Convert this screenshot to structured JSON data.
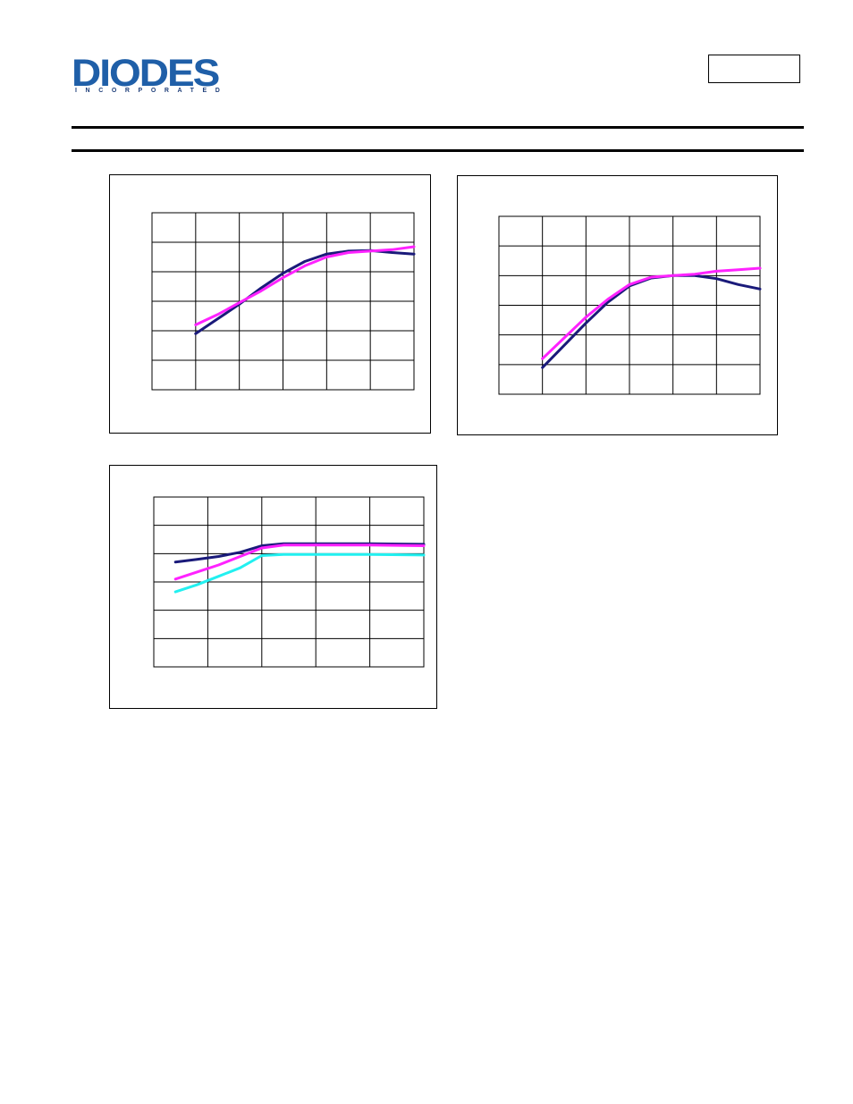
{
  "header": {
    "logo_text": "DIODES",
    "logo_subtext": "INCORPORATED",
    "part_number": ""
  },
  "colors": {
    "navy": "#1a1a7a",
    "magenta": "#ff22ff",
    "cyan": "#22f0f0",
    "logo_blue": "#1f5fa8"
  },
  "chart_data": [
    {
      "type": "line",
      "title": "",
      "xlabel": "",
      "ylabel": "",
      "xlim": [
        0,
        6
      ],
      "ylim": [
        0,
        6
      ],
      "grid": true,
      "series": [
        {
          "color": "#1a1a7a",
          "x": [
            1,
            1.5,
            2,
            2.5,
            3,
            3.5,
            4,
            4.5,
            5,
            5.5,
            6
          ],
          "y": [
            1.9,
            2.4,
            2.9,
            3.45,
            3.95,
            4.35,
            4.6,
            4.7,
            4.72,
            4.65,
            4.6
          ]
        },
        {
          "color": "#ff22ff",
          "x": [
            1,
            1.5,
            2,
            2.5,
            3,
            3.5,
            4,
            4.5,
            5,
            5.5,
            6
          ],
          "y": [
            2.2,
            2.55,
            2.95,
            3.35,
            3.8,
            4.2,
            4.5,
            4.65,
            4.7,
            4.75,
            4.85
          ]
        }
      ]
    },
    {
      "type": "line",
      "title": "",
      "xlabel": "",
      "ylabel": "",
      "xlim": [
        0,
        6
      ],
      "ylim": [
        0,
        6
      ],
      "grid": true,
      "series": [
        {
          "color": "#1a1a7a",
          "x": [
            1,
            1.5,
            2,
            2.5,
            3,
            3.5,
            4,
            4.5,
            5,
            5.5,
            6
          ],
          "y": [
            0.9,
            1.65,
            2.4,
            3.1,
            3.65,
            3.92,
            4.0,
            4.0,
            3.9,
            3.7,
            3.55
          ]
        },
        {
          "color": "#ff22ff",
          "x": [
            1,
            1.5,
            2,
            2.5,
            3,
            3.5,
            4,
            4.5,
            5,
            5.5,
            6
          ],
          "y": [
            1.2,
            1.9,
            2.6,
            3.2,
            3.7,
            3.95,
            4.0,
            4.05,
            4.15,
            4.2,
            4.25
          ]
        }
      ]
    },
    {
      "type": "line",
      "title": "",
      "xlabel": "",
      "ylabel": "",
      "xlim": [
        0,
        5
      ],
      "ylim": [
        0,
        6
      ],
      "grid": true,
      "series": [
        {
          "color": "#1a1a7a",
          "x": [
            0.4,
            0.8,
            1.2,
            1.6,
            2.0,
            2.4,
            3.0,
            4.0,
            5.0
          ],
          "y": [
            3.7,
            3.8,
            3.9,
            4.05,
            4.28,
            4.35,
            4.35,
            4.35,
            4.33
          ]
        },
        {
          "color": "#ff22ff",
          "x": [
            0.4,
            0.8,
            1.2,
            1.6,
            2.0,
            2.4,
            3.0,
            4.0,
            5.0
          ],
          "y": [
            3.1,
            3.35,
            3.6,
            3.9,
            4.2,
            4.3,
            4.3,
            4.3,
            4.28
          ]
        },
        {
          "color": "#22f0f0",
          "x": [
            0.4,
            0.8,
            1.2,
            1.6,
            2.0,
            2.4,
            3.0,
            4.0,
            5.0
          ],
          "y": [
            2.65,
            2.9,
            3.2,
            3.5,
            3.93,
            3.97,
            3.97,
            3.97,
            3.95
          ]
        }
      ]
    }
  ]
}
